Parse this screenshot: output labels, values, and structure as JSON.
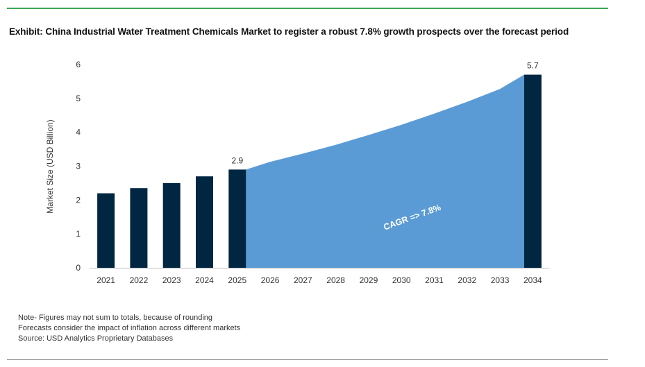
{
  "title": "Exhibit: China Industrial Water Treatment Chemicals Market to register a robust 7.8% growth prospects over the forecast period",
  "notes": [
    "Note- Figures may not sum to totals, because of rounding",
    "Forecasts consider the impact of inflation across different markets",
    "Source: USD Analytics Proprietary Databases"
  ],
  "colors": {
    "bar": "#002642",
    "area": "#5b9bd5",
    "accent_rule": "#3aa655"
  },
  "chart_data": {
    "type": "bar",
    "categories": [
      "2021",
      "2022",
      "2023",
      "2024",
      "2025",
      "2026",
      "2027",
      "2028",
      "2029",
      "2030",
      "2031",
      "2032",
      "2033",
      "2034"
    ],
    "bars": [
      {
        "x": "2021",
        "value": 2.2
      },
      {
        "x": "2022",
        "value": 2.35
      },
      {
        "x": "2023",
        "value": 2.5
      },
      {
        "x": "2024",
        "value": 2.7
      },
      {
        "x": "2025",
        "value": 2.9
      },
      {
        "x": "2034",
        "value": 5.7
      }
    ],
    "data_labels": [
      {
        "x": "2025",
        "text": "2.9"
      },
      {
        "x": "2034",
        "text": "5.7"
      }
    ],
    "area_series": {
      "x": [
        "2025",
        "2026",
        "2027",
        "2028",
        "2029",
        "2030",
        "2031",
        "2032",
        "2033",
        "2034"
      ],
      "values": [
        2.9,
        3.13,
        3.37,
        3.63,
        3.92,
        4.22,
        4.55,
        4.9,
        5.28,
        5.7
      ]
    },
    "annotation": "CAGR => 7.8%",
    "ylabel": "Market Size (USD Billion)",
    "xlabel": "",
    "yticks": [
      0,
      1,
      2,
      3,
      4,
      5,
      6
    ],
    "ylim": [
      0,
      6
    ],
    "grid": false
  }
}
